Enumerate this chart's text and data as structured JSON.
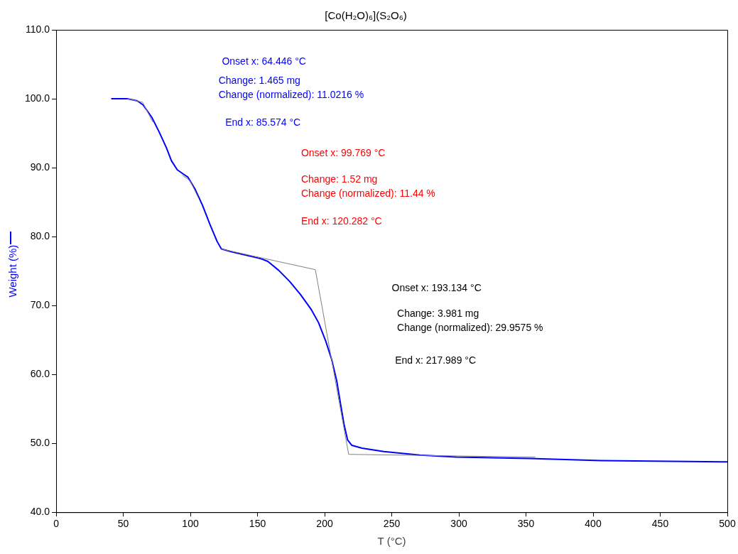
{
  "chart_data": {
    "type": "line",
    "title": "[Co(H₂O)₆](S₂O₆)",
    "xlabel": "T (°C)",
    "ylabel": "Weight (%)",
    "xlim": [
      0,
      500
    ],
    "xticks": [
      0,
      50,
      100,
      150,
      200,
      250,
      300,
      350,
      400,
      450,
      500
    ],
    "ylim": [
      40,
      110
    ],
    "yticks": [
      {
        "value": 40,
        "label": "40.0"
      },
      {
        "value": 50,
        "label": "50.0"
      },
      {
        "value": 60,
        "label": "60.0"
      },
      {
        "value": 70,
        "label": "70.0"
      },
      {
        "value": 80,
        "label": "80.0"
      },
      {
        "value": 90,
        "label": "90.0"
      },
      {
        "value": 100,
        "label": "100.0"
      },
      {
        "value": 110,
        "label": "110.0"
      }
    ],
    "grid": false,
    "legend": false,
    "marker": "none",
    "line_style": "solid",
    "annotations": [
      "Onset x: 64.446 °C",
      "Change: 1.465 mg",
      "Change (normalized): 11.0216 %",
      "End x: 85.574 °C",
      "Onset x: 99.769 °C",
      "Change: 1.52 mg",
      "Change (normalized): 11.44 %",
      "End x: 120.282 °C",
      "Onset x: 193.134 °C",
      "Change: 3.981 mg",
      "Change (normalized): 29.9575 %",
      "End x: 217.989 °C"
    ],
    "series": [
      {
        "color": "#808080",
        "x": [
          53,
          64.4,
          72
        ],
        "values": [
          100.0,
          99.5,
          96.6
        ]
      },
      {
        "color": "#808080",
        "x": [
          94,
          99.8,
          106
        ],
        "values": [
          88.9,
          88.1,
          85.6
        ]
      },
      {
        "color": "#808080",
        "x": [
          123,
          193.1,
          217.9,
          357
        ],
        "values": [
          78.2,
          75.2,
          48.4,
          48.0
        ]
      },
      {
        "color": "#0000ff",
        "x": [
          41,
          53,
          60.5,
          64.8,
          71.3,
          76.7,
          82.1,
          85.9,
          90.2,
          94.5,
          98.3,
          103.7,
          109.1,
          114.5,
          119.9,
          123.1,
          130.7,
          141.5,
          152.3,
          157.7,
          165.8,
          173.9,
          182.0,
          190.1,
          195.5,
          200.9,
          205.2,
          209.0,
          211.7,
          214.4,
          217.1,
          220.3,
          227.9,
          244.1,
          271.1,
          298.1,
          352.1,
          406.0,
          500
        ],
        "values": [
          100.0,
          100.0,
          99.7,
          99.1,
          97.3,
          95.2,
          92.9,
          91.0,
          89.7,
          89.1,
          88.6,
          86.8,
          84.5,
          81.8,
          79.3,
          78.2,
          77.8,
          77.3,
          76.8,
          76.4,
          75.1,
          73.5,
          71.6,
          69.4,
          67.5,
          64.8,
          62.2,
          59.1,
          55.9,
          52.8,
          50.5,
          49.7,
          49.3,
          48.8,
          48.3,
          48.0,
          47.8,
          47.5,
          47.3
        ]
      }
    ]
  }
}
